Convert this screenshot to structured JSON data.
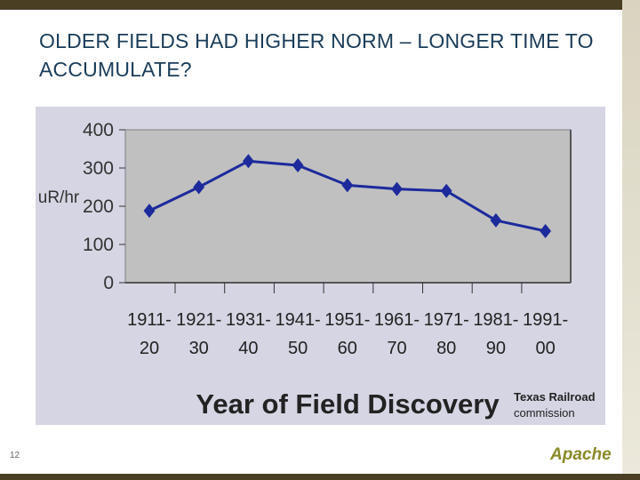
{
  "slide": {
    "title": "OLDER FIELDS HAD HIGHER NORM – LONGER TIME TO ACCUMULATE?",
    "slide_number": "12",
    "logo_text": "Apache",
    "source_label_line1": "Texas Railroad",
    "source_label_line2": "commission"
  },
  "colors": {
    "title": "#1a3c5a",
    "accent_bar": "#4a3f22",
    "plot_bg": "#c0c0c0",
    "panel_bg": "#d5d5e3",
    "series": "#1c2a9c",
    "logo": "#8a8a2a"
  },
  "chart_data": {
    "type": "line",
    "title": "",
    "xlabel": "Year of Field Discovery",
    "ylabel": "uR/hr",
    "ylim": [
      0,
      400
    ],
    "yticks": [
      0,
      100,
      200,
      300,
      400
    ],
    "grid": false,
    "legend": "none",
    "categories": [
      [
        "1911-",
        "20"
      ],
      [
        "1921-",
        "30"
      ],
      [
        "1931-",
        "40"
      ],
      [
        "1941-",
        "50"
      ],
      [
        "1951-",
        "60"
      ],
      [
        "1961-",
        "70"
      ],
      [
        "1971-",
        "80"
      ],
      [
        "1981-",
        "90"
      ],
      [
        "1991-",
        "00"
      ]
    ],
    "series": [
      {
        "values": [
          188,
          250,
          318,
          307,
          255,
          245,
          240,
          163,
          135
        ]
      }
    ]
  }
}
